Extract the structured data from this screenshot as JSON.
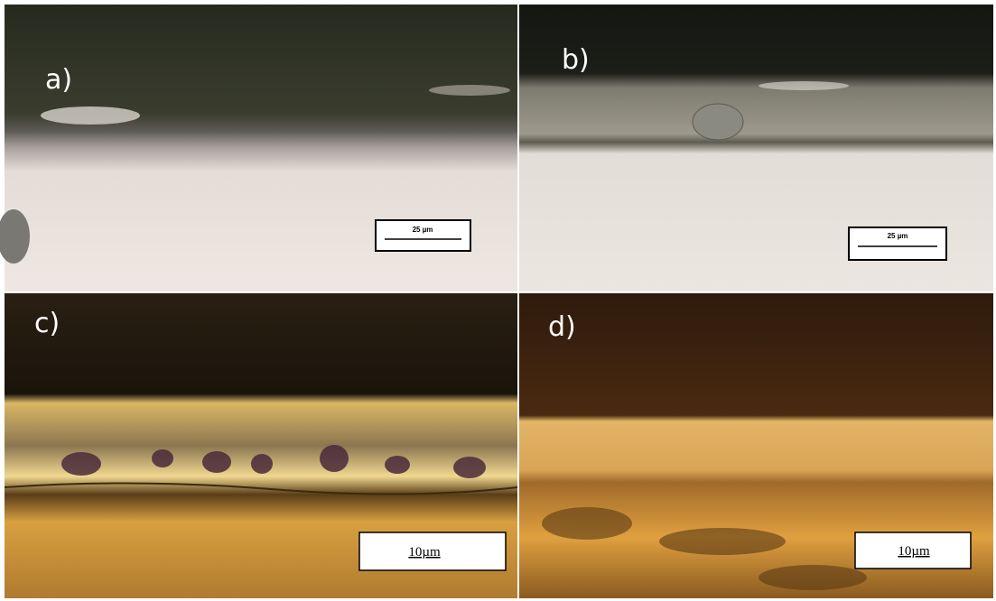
{
  "panels": [
    {
      "label": "a)",
      "scale_bar": "25 µm"
    },
    {
      "label": "b)",
      "scale_bar": "25 µm"
    },
    {
      "label": "c)",
      "scale_bar": "10µm"
    },
    {
      "label": "d)",
      "scale_bar": "10µm"
    }
  ]
}
